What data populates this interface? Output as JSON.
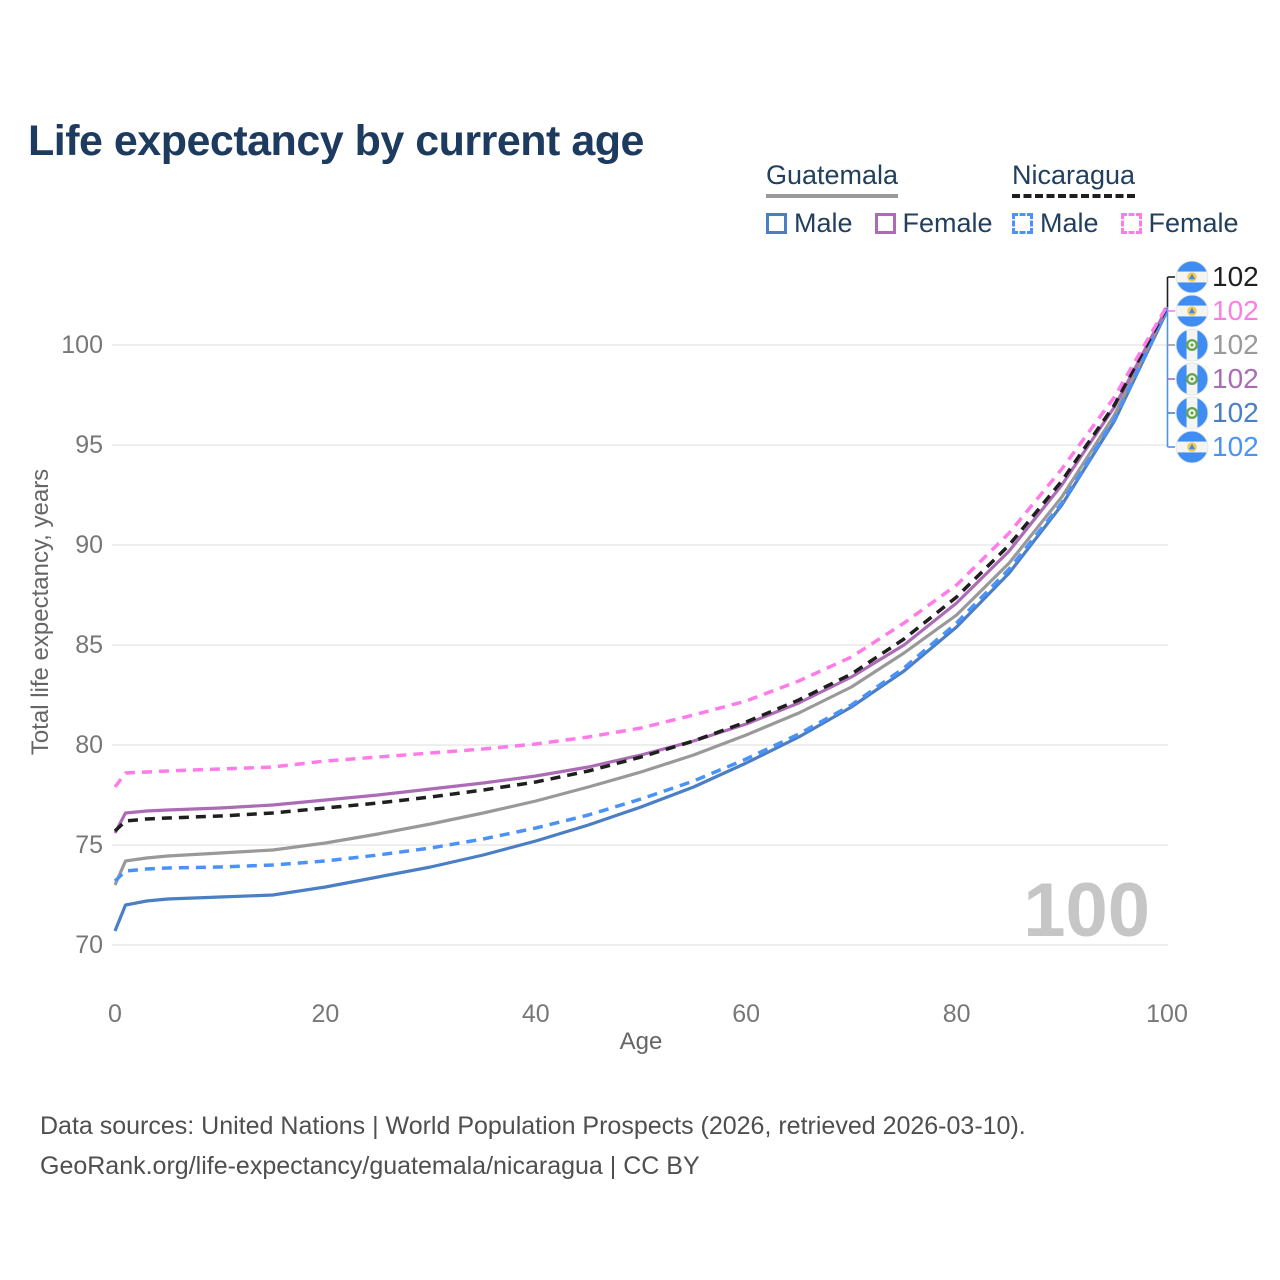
{
  "title": "Life expectancy by current age",
  "legend": {
    "groups": [
      {
        "country": "Guatemala",
        "line_style": "solid",
        "underline_color": "#9a9a9a",
        "entries": [
          {
            "label": "Male",
            "color": "#4a7ec5"
          },
          {
            "label": "Female",
            "color": "#ac6cb5"
          }
        ]
      },
      {
        "country": "Nicaragua",
        "line_style": "dashed",
        "underline_color": "#1f1f1f",
        "entries": [
          {
            "label": "Male",
            "color": "#4a92fa"
          },
          {
            "label": "Female",
            "color": "#ff7ce8"
          }
        ]
      }
    ]
  },
  "chart_data": {
    "type": "line",
    "title": "Life expectancy by current age",
    "xlabel": "Age",
    "ylabel": "Total life expectancy, years",
    "xlim": [
      0,
      100
    ],
    "ylim": [
      70,
      102.5
    ],
    "x_ticks": [
      0,
      20,
      40,
      60,
      80,
      100
    ],
    "y_ticks": [
      70,
      75,
      80,
      85,
      90,
      95,
      100
    ],
    "grid": "horizontal",
    "legend_position": "top-right",
    "x": [
      0,
      1,
      3,
      5,
      10,
      15,
      20,
      25,
      30,
      35,
      40,
      45,
      50,
      55,
      60,
      65,
      70,
      75,
      80,
      85,
      90,
      95,
      100
    ],
    "series": [
      {
        "name": "Guatemala Male",
        "country": "Guatemala",
        "sex": "Male",
        "color": "#4a7ec5",
        "dash": "solid",
        "values": [
          70.7,
          72.0,
          72.2,
          72.3,
          72.4,
          72.5,
          72.9,
          73.4,
          73.9,
          74.5,
          75.2,
          76.0,
          76.9,
          77.9,
          79.1,
          80.4,
          81.9,
          83.7,
          85.9,
          88.6,
          92.0,
          96.2,
          101.7
        ]
      },
      {
        "name": "Guatemala (both sexes)",
        "country": "Guatemala",
        "sex": "Both",
        "color": "#999999",
        "dash": "solid",
        "values": [
          73.0,
          74.2,
          74.35,
          74.45,
          74.6,
          74.75,
          75.1,
          75.55,
          76.05,
          76.6,
          77.2,
          77.9,
          78.65,
          79.5,
          80.5,
          81.6,
          82.9,
          84.6,
          86.5,
          89.1,
          92.4,
          96.5,
          101.8
        ]
      },
      {
        "name": "Guatemala Female",
        "country": "Guatemala",
        "sex": "Female",
        "color": "#ac6cb5",
        "dash": "solid",
        "values": [
          75.6,
          76.6,
          76.7,
          76.75,
          76.85,
          77.0,
          77.25,
          77.5,
          77.8,
          78.1,
          78.45,
          78.9,
          79.5,
          80.2,
          81.05,
          82.1,
          83.4,
          85.0,
          87.1,
          89.7,
          93.0,
          96.9,
          101.85
        ]
      },
      {
        "name": "Nicaragua Male",
        "country": "Nicaragua",
        "sex": "Male",
        "color": "#4a92fa",
        "dash": "dashed",
        "values": [
          73.2,
          73.7,
          73.8,
          73.85,
          73.9,
          74.0,
          74.2,
          74.5,
          74.85,
          75.3,
          75.85,
          76.5,
          77.3,
          78.2,
          79.3,
          80.55,
          82.0,
          83.85,
          86.1,
          88.8,
          92.1,
          96.3,
          101.75
        ]
      },
      {
        "name": "Nicaragua (both sexes)",
        "country": "Nicaragua",
        "sex": "Both",
        "color": "#1f1f1f",
        "dash": "dashed",
        "values": [
          75.7,
          76.2,
          76.3,
          76.35,
          76.45,
          76.6,
          76.85,
          77.1,
          77.4,
          77.75,
          78.15,
          78.7,
          79.4,
          80.2,
          81.15,
          82.25,
          83.55,
          85.3,
          87.4,
          90.0,
          93.2,
          97.0,
          101.9
        ]
      },
      {
        "name": "Nicaragua Female",
        "country": "Nicaragua",
        "sex": "Female",
        "color": "#ff7ce8",
        "dash": "dashed",
        "values": [
          77.9,
          78.6,
          78.65,
          78.7,
          78.8,
          78.9,
          79.2,
          79.4,
          79.6,
          79.8,
          80.05,
          80.4,
          80.85,
          81.5,
          82.2,
          83.2,
          84.4,
          86.1,
          88.0,
          90.6,
          93.8,
          97.4,
          101.95
        ]
      }
    ],
    "end_labels": [
      {
        "text": "102",
        "color": "#1f1f1f",
        "flag": "nicaragua",
        "series": "Nicaragua (both sexes)"
      },
      {
        "text": "102",
        "color": "#ff7ce8",
        "flag": "nicaragua",
        "series": "Nicaragua Female"
      },
      {
        "text": "102",
        "color": "#9a9a9a",
        "flag": "guatemala",
        "series": "Guatemala (both sexes)"
      },
      {
        "text": "102",
        "color": "#ac6cb5",
        "flag": "guatemala",
        "series": "Guatemala Female"
      },
      {
        "text": "102",
        "color": "#4a7ec5",
        "flag": "guatemala",
        "series": "Guatemala Male"
      },
      {
        "text": "102",
        "color": "#4a92fa",
        "flag": "nicaragua",
        "series": "Nicaragua Male"
      }
    ],
    "age_counter_watermark": "100",
    "colors": {
      "grid": "#e9e9e9",
      "tick_text": "#777777",
      "axis_title_text": "#666666",
      "watermark": "#c6c6c6",
      "flag_blue": "#3f8df2",
      "leader_top": "#1f1f1f",
      "leader_bottom": "#4a92fa"
    }
  },
  "footer": {
    "line1": "Data sources: United Nations | World Population Prospects (2026, retrieved 2026-03-10).",
    "line2": "GeoRank.org/life-expectancy/guatemala/nicaragua | CC BY"
  }
}
